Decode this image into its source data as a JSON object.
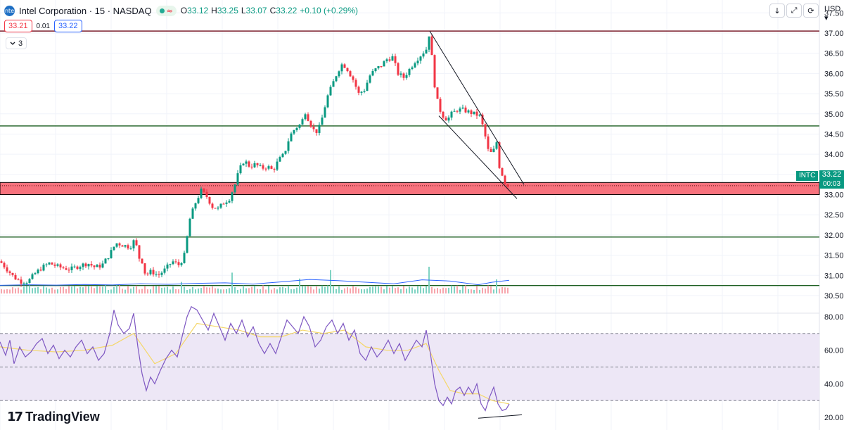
{
  "header": {
    "symbol_icon": "intel-logo-icon",
    "title": "Intel Corporation · 15 · NASDAQ",
    "status_icon": "market-open-dot-icon",
    "wave_icon": "≈",
    "ohlc": {
      "o_label": "O",
      "o_value": "33.12",
      "h_label": "H",
      "h_value": "33.25",
      "l_label": "L",
      "l_value": "33.07",
      "c_label": "C",
      "c_value": "33.22",
      "change": "+0.10 (+0.29%)"
    }
  },
  "trade": {
    "sell": "33.21",
    "spread": "0.01",
    "buy": "33.22"
  },
  "indicators": {
    "collapse_icon": "chevron-down-icon",
    "count": "3"
  },
  "toolbar": {
    "download_icon": "↓",
    "fullscreen_icon": "⤢",
    "snapshot_icon": "⟳",
    "currency": "USD"
  },
  "price_tag": {
    "symbol": "INTC",
    "price": "33.22",
    "countdown": "00:03"
  },
  "logo": {
    "mark": "17",
    "text": "TradingView"
  },
  "colors": {
    "up": "#089981",
    "down": "#f23645",
    "hline": "#1b5e20",
    "resistance": "#7b1e2c",
    "zone_fill": "#f7727d",
    "volume_ma": "#2962ff",
    "rsi": "#7e57c2",
    "rsi_ma": "#f5d769",
    "rsi_band": "#ede7f6"
  },
  "chart_data": {
    "type": "candlestick",
    "symbol": "INTC",
    "timeframe": "15",
    "price_axis": {
      "ticks": [
        "37.50",
        "37.00",
        "36.50",
        "36.00",
        "35.50",
        "35.00",
        "34.50",
        "34.00",
        "33.50",
        "33.00",
        "32.50",
        "32.00",
        "31.50",
        "31.00",
        "30.50"
      ],
      "range": [
        30.3,
        37.5
      ]
    },
    "price_path": [
      [
        0,
        31.35
      ],
      [
        10,
        31.15
      ],
      [
        20,
        30.95
      ],
      [
        30,
        30.85
      ],
      [
        40,
        30.85
      ],
      [
        50,
        31.05
      ],
      [
        60,
        31.2
      ],
      [
        70,
        31.3
      ],
      [
        85,
        31.2
      ],
      [
        100,
        31.15
      ],
      [
        115,
        31.25
      ],
      [
        125,
        31.3
      ],
      [
        135,
        31.2
      ],
      [
        145,
        31.25
      ],
      [
        155,
        31.5
      ],
      [
        165,
        31.8
      ],
      [
        175,
        31.75
      ],
      [
        185,
        31.7
      ],
      [
        192,
        31.9
      ],
      [
        197,
        31.45
      ],
      [
        202,
        31.35
      ],
      [
        207,
        31.0
      ],
      [
        215,
        31.1
      ],
      [
        225,
        31.0
      ],
      [
        235,
        31.15
      ],
      [
        245,
        31.35
      ],
      [
        255,
        31.25
      ],
      [
        262,
        31.5
      ],
      [
        270,
        32.4
      ],
      [
        278,
        32.8
      ],
      [
        286,
        33.1
      ],
      [
        294,
        32.95
      ],
      [
        302,
        32.7
      ],
      [
        310,
        32.65
      ],
      [
        318,
        32.8
      ],
      [
        326,
        32.9
      ],
      [
        334,
        33.25
      ],
      [
        340,
        33.6
      ],
      [
        347,
        33.85
      ],
      [
        355,
        33.7
      ],
      [
        363,
        33.75
      ],
      [
        372,
        33.65
      ],
      [
        380,
        33.7
      ],
      [
        388,
        33.6
      ],
      [
        396,
        33.85
      ],
      [
        404,
        34.0
      ],
      [
        412,
        34.45
      ],
      [
        420,
        34.65
      ],
      [
        428,
        34.75
      ],
      [
        434,
        35.05
      ],
      [
        440,
        34.8
      ],
      [
        446,
        34.6
      ],
      [
        452,
        34.55
      ],
      [
        458,
        34.9
      ],
      [
        465,
        35.4
      ],
      [
        472,
        35.7
      ],
      [
        480,
        36.05
      ],
      [
        487,
        36.25
      ],
      [
        494,
        36.1
      ],
      [
        502,
        35.85
      ],
      [
        510,
        35.5
      ],
      [
        518,
        35.6
      ],
      [
        526,
        35.95
      ],
      [
        534,
        36.1
      ],
      [
        542,
        36.2
      ],
      [
        550,
        36.35
      ],
      [
        558,
        36.4
      ],
      [
        566,
        36.0
      ],
      [
        574,
        35.9
      ],
      [
        582,
        36.1
      ],
      [
        590,
        36.3
      ],
      [
        598,
        36.45
      ],
      [
        606,
        36.6
      ],
      [
        611,
        37.05
      ],
      [
        615,
        36.2
      ],
      [
        619,
        35.55
      ],
      [
        624,
        35.15
      ],
      [
        630,
        34.95
      ],
      [
        636,
        34.85
      ],
      [
        642,
        35.0
      ],
      [
        650,
        35.1
      ],
      [
        658,
        35.1
      ],
      [
        666,
        35.05
      ],
      [
        674,
        35.0
      ],
      [
        682,
        34.95
      ],
      [
        688,
        34.6
      ],
      [
        694,
        34.1
      ],
      [
        700,
        34.0
      ],
      [
        706,
        34.3
      ],
      [
        710,
        33.7
      ],
      [
        716,
        33.4
      ],
      [
        720,
        33.2
      ],
      [
        724,
        33.22
      ]
    ],
    "volume_ma_path": [
      [
        0,
        0.42
      ],
      [
        40,
        0.45
      ],
      [
        80,
        0.43
      ],
      [
        120,
        0.46
      ],
      [
        160,
        0.44
      ],
      [
        200,
        0.5
      ],
      [
        240,
        0.47
      ],
      [
        280,
        0.52
      ],
      [
        320,
        0.55
      ],
      [
        360,
        0.48
      ],
      [
        400,
        0.6
      ],
      [
        440,
        0.72
      ],
      [
        480,
        0.66
      ],
      [
        520,
        0.58
      ],
      [
        560,
        0.5
      ],
      [
        600,
        0.7
      ],
      [
        640,
        0.64
      ],
      [
        680,
        0.45
      ],
      [
        700,
        0.58
      ],
      [
        724,
        0.68
      ]
    ],
    "volume_spikes": [
      [
        92,
        0.9
      ],
      [
        192,
        0.7
      ],
      [
        258,
        1.2
      ],
      [
        330,
        2.3
      ],
      [
        426,
        1.6
      ],
      [
        470,
        2.6
      ],
      [
        610,
        3.0
      ],
      [
        680,
        1.9
      ],
      [
        706,
        1.5
      ]
    ],
    "horizontal_levels": [
      {
        "price": 37.05,
        "color": "resistance"
      },
      {
        "price": 34.7,
        "color": "hline"
      },
      {
        "price": 31.95,
        "color": "hline"
      },
      {
        "price": 30.75,
        "color": "hline"
      }
    ],
    "zone": {
      "top": 33.3,
      "bottom": 33.0,
      "dotted_line": 33.22
    },
    "channel_lines": [
      [
        [
          611,
          37.05
        ],
        [
          745,
          33.25
        ]
      ],
      [
        [
          624,
          34.95
        ],
        [
          735,
          32.9
        ]
      ]
    ],
    "rsi": {
      "axis_ticks": [
        "80.00",
        "60.00",
        "40.00",
        "20.00"
      ],
      "range": [
        18,
        92
      ],
      "upper_band": 70,
      "middle": 50,
      "lower_band": 30,
      "rsi_path": [
        [
          0,
          65
        ],
        [
          8,
          57
        ],
        [
          14,
          66
        ],
        [
          20,
          52
        ],
        [
          28,
          62
        ],
        [
          36,
          56
        ],
        [
          44,
          59
        ],
        [
          52,
          64
        ],
        [
          60,
          67
        ],
        [
          68,
          58
        ],
        [
          76,
          63
        ],
        [
          84,
          55
        ],
        [
          92,
          60
        ],
        [
          100,
          56
        ],
        [
          108,
          62
        ],
        [
          116,
          66
        ],
        [
          124,
          58
        ],
        [
          132,
          62
        ],
        [
          140,
          54
        ],
        [
          148,
          58
        ],
        [
          156,
          70
        ],
        [
          162,
          84
        ],
        [
          168,
          75
        ],
        [
          176,
          70
        ],
        [
          184,
          73
        ],
        [
          190,
          82
        ],
        [
          196,
          62
        ],
        [
          202,
          46
        ],
        [
          208,
          36
        ],
        [
          214,
          44
        ],
        [
          220,
          40
        ],
        [
          228,
          48
        ],
        [
          236,
          55
        ],
        [
          244,
          60
        ],
        [
          252,
          56
        ],
        [
          260,
          70
        ],
        [
          266,
          80
        ],
        [
          272,
          86
        ],
        [
          280,
          84
        ],
        [
          288,
          78
        ],
        [
          296,
          72
        ],
        [
          304,
          82
        ],
        [
          312,
          74
        ],
        [
          320,
          66
        ],
        [
          328,
          76
        ],
        [
          336,
          70
        ],
        [
          344,
          78
        ],
        [
          352,
          68
        ],
        [
          360,
          74
        ],
        [
          368,
          64
        ],
        [
          376,
          58
        ],
        [
          384,
          64
        ],
        [
          392,
          58
        ],
        [
          400,
          68
        ],
        [
          408,
          78
        ],
        [
          416,
          74
        ],
        [
          424,
          70
        ],
        [
          432,
          80
        ],
        [
          440,
          74
        ],
        [
          448,
          62
        ],
        [
          456,
          66
        ],
        [
          464,
          74
        ],
        [
          472,
          78
        ],
        [
          480,
          70
        ],
        [
          488,
          76
        ],
        [
          496,
          66
        ],
        [
          504,
          72
        ],
        [
          512,
          58
        ],
        [
          520,
          54
        ],
        [
          528,
          62
        ],
        [
          536,
          56
        ],
        [
          544,
          60
        ],
        [
          552,
          66
        ],
        [
          560,
          58
        ],
        [
          568,
          64
        ],
        [
          576,
          54
        ],
        [
          584,
          60
        ],
        [
          592,
          66
        ],
        [
          600,
          62
        ],
        [
          606,
          72
        ],
        [
          612,
          58
        ],
        [
          618,
          40
        ],
        [
          624,
          30
        ],
        [
          630,
          27
        ],
        [
          636,
          32
        ],
        [
          642,
          28
        ],
        [
          648,
          36
        ],
        [
          654,
          38
        ],
        [
          660,
          33
        ],
        [
          666,
          38
        ],
        [
          672,
          34
        ],
        [
          678,
          40
        ],
        [
          684,
          28
        ],
        [
          690,
          24
        ],
        [
          696,
          32
        ],
        [
          702,
          38
        ],
        [
          708,
          28
        ],
        [
          714,
          24
        ],
        [
          720,
          25
        ],
        [
          724,
          28
        ]
      ],
      "rsi_ma_path": [
        [
          0,
          62
        ],
        [
          40,
          60
        ],
        [
          80,
          59
        ],
        [
          120,
          60
        ],
        [
          160,
          63
        ],
        [
          190,
          70
        ],
        [
          220,
          52
        ],
        [
          250,
          58
        ],
        [
          280,
          76
        ],
        [
          310,
          74
        ],
        [
          340,
          72
        ],
        [
          370,
          68
        ],
        [
          400,
          68
        ],
        [
          430,
          72
        ],
        [
          460,
          70
        ],
        [
          490,
          72
        ],
        [
          520,
          62
        ],
        [
          550,
          60
        ],
        [
          580,
          60
        ],
        [
          606,
          64
        ],
        [
          624,
          48
        ],
        [
          640,
          36
        ],
        [
          660,
          34
        ],
        [
          680,
          34
        ],
        [
          700,
          30
        ],
        [
          724,
          28
        ]
      ],
      "divergence_line": [
        [
          680,
          19.5
        ],
        [
          742,
          21.5
        ]
      ]
    }
  }
}
